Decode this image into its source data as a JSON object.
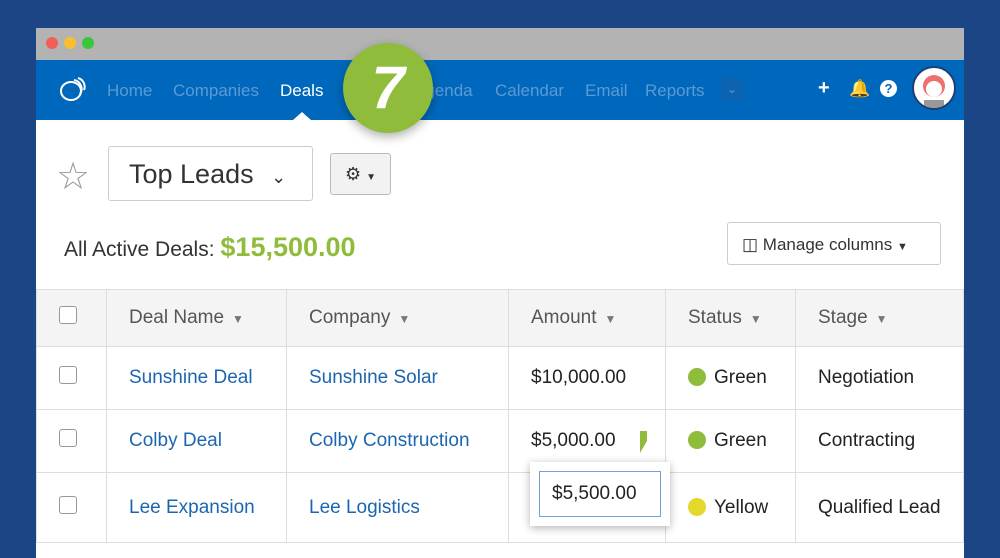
{
  "nav": {
    "items": [
      "Home",
      "Companies",
      "Deals",
      "Agenda",
      "Calendar",
      "Email",
      "Reports"
    ],
    "active": "Deals"
  },
  "badge": "7",
  "view": {
    "name": "Top Leads"
  },
  "summary": {
    "label": "All Active Deals:",
    "amount": "$15,500.00"
  },
  "manage_columns": "Manage columns",
  "table": {
    "headers": [
      "Deal Name",
      "Company",
      "Amount",
      "Status",
      "Stage"
    ],
    "rows": [
      {
        "deal": "Sunshine Deal",
        "company": "Sunshine Solar",
        "amount": "$10,000.00",
        "status": "Green",
        "stage": "Negotiation"
      },
      {
        "deal": "Colby Deal",
        "company": "Colby Construction",
        "amount": "$5,000.00",
        "status": "Green",
        "stage": "Contracting"
      },
      {
        "deal": "Lee Expansion",
        "company": "Lee Logistics",
        "amount": "",
        "status": "Yellow",
        "stage": "Qualified Lead"
      }
    ]
  },
  "editor": {
    "value": "$5,500.00"
  },
  "colors": {
    "nav": "#0068bc",
    "accent": "#8fbc3b",
    "green": "#8fbc3b",
    "yellow": "#e3d82c",
    "link": "#1c66b0"
  }
}
